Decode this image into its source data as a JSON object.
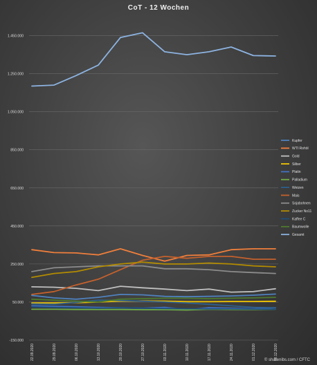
{
  "chart_data": {
    "type": "line",
    "title": "CoT - 12 Wochen",
    "x": [
      "22.09.2020",
      "29.09.2020",
      "06.10.2020",
      "13.10.2020",
      "20.10.2020",
      "27.10.2020",
      "03.11.2020",
      "10.11.2020",
      "17.11.2020",
      "24.11.2020",
      "01.12.2020",
      "08.12.2020"
    ],
    "ylim": [
      -150000,
      1550000
    ],
    "yticks": [
      -150000,
      50000,
      250000,
      450000,
      650000,
      850000,
      1050000,
      1250000,
      1450000
    ],
    "ytick_labels": [
      "-150.000",
      "50.000",
      "250.000",
      "450.000",
      "650.000",
      "850.000",
      "1.050.000",
      "1.250.000",
      "1.450.000"
    ],
    "grid": true,
    "legend_position": "right",
    "series": [
      {
        "name": "Kupfer",
        "color": "#4f81bd",
        "values": [
          85000,
          72000,
          65000,
          75000,
          90000,
          88000,
          80000,
          78000,
          80000,
          82000,
          86000,
          92000
        ]
      },
      {
        "name": "WTI Rohöl",
        "color": "#f07f3c",
        "values": [
          325000,
          310000,
          308000,
          298000,
          330000,
          295000,
          265000,
          295000,
          298000,
          325000,
          330000,
          330000
        ]
      },
      {
        "name": "Gold",
        "color": "#c0c0c0",
        "values": [
          130000,
          128000,
          122000,
          110000,
          133000,
          125000,
          118000,
          110000,
          118000,
          102000,
          105000,
          120000
        ]
      },
      {
        "name": "Silber",
        "color": "#f2c500",
        "values": [
          45000,
          45000,
          47000,
          50000,
          55000,
          56000,
          55000,
          52000,
          52000,
          53000,
          53000,
          54000
        ]
      },
      {
        "name": "Platin",
        "color": "#4472c4",
        "values": [
          30000,
          28000,
          25000,
          22000,
          20000,
          18000,
          22000,
          10000,
          20000,
          18000,
          15000,
          20000
        ]
      },
      {
        "name": "Palladium",
        "color": "#70ad47",
        "values": [
          12000,
          12000,
          11000,
          11000,
          11000,
          10000,
          10000,
          8000,
          12000,
          11000,
          11000,
          12000
        ]
      },
      {
        "name": "Weizen",
        "color": "#2e5f8a",
        "values": [
          40000,
          38000,
          48000,
          60000,
          58000,
          55000,
          50000,
          45000,
          38000,
          30000,
          22000,
          20000
        ]
      },
      {
        "name": "Mais",
        "color": "#c5612c",
        "values": [
          90000,
          105000,
          140000,
          170000,
          220000,
          270000,
          290000,
          280000,
          290000,
          290000,
          275000,
          275000
        ]
      },
      {
        "name": "Sojabohnen",
        "color": "#8c8c8c",
        "values": [
          210000,
          230000,
          235000,
          240000,
          240000,
          240000,
          225000,
          225000,
          220000,
          210000,
          205000,
          200000
        ]
      },
      {
        "name": "Zucker No11",
        "color": "#b38c00",
        "values": [
          180000,
          200000,
          210000,
          235000,
          250000,
          260000,
          250000,
          250000,
          255000,
          250000,
          240000,
          235000
        ]
      },
      {
        "name": "Kaffee C",
        "color": "#1f4e79",
        "values": [
          25000,
          22000,
          20000,
          18000,
          20000,
          18000,
          16000,
          15000,
          14000,
          14000,
          13000,
          12000
        ]
      },
      {
        "name": "Baumwolle",
        "color": "#4e7a2e",
        "values": [
          65000,
          60000,
          55000,
          50000,
          65000,
          68000,
          70000,
          70000,
          68000,
          70000,
          72000,
          75000
        ]
      },
      {
        "name": "Gesamt",
        "color": "#8db4e2",
        "values": [
          1185000,
          1190000,
          1240000,
          1295000,
          1440000,
          1465000,
          1365000,
          1350000,
          1365000,
          1390000,
          1345000,
          1343000
        ]
      }
    ],
    "source": "© sharenibs.com / CFTC"
  }
}
